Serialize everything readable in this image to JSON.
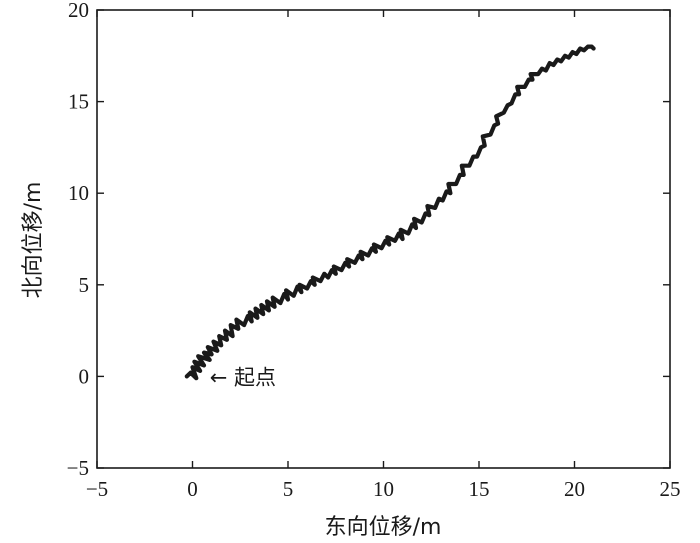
{
  "chart_data": {
    "type": "line",
    "title": "",
    "xlabel": "东向位移/m",
    "ylabel": "北向位移/m",
    "xlim": [
      -5,
      25
    ],
    "ylim": [
      -5,
      20
    ],
    "xticks": [
      -5,
      0,
      5,
      10,
      15,
      20,
      25
    ],
    "yticks": [
      -5,
      0,
      5,
      10,
      15,
      20
    ],
    "xtick_labels": [
      "−5",
      "0",
      "5",
      "10",
      "15",
      "20",
      "25"
    ],
    "ytick_labels": [
      "−5",
      "0",
      "5",
      "10",
      "15",
      "20"
    ],
    "grid": false,
    "annotations": [
      {
        "text": "← 起点",
        "x": 0.9,
        "y": 0.0
      }
    ],
    "series": [
      {
        "color": "#1a1a1a",
        "x": [
          -0.3,
          -0.1,
          0.2,
          0.0,
          0.4,
          0.1,
          0.6,
          0.3,
          0.9,
          0.6,
          1.0,
          0.8,
          1.3,
          1.1,
          1.5,
          1.4,
          1.8,
          1.7,
          2.1,
          2.0,
          2.4,
          2.3,
          2.7,
          2.9,
          3.1,
          3.0,
          3.4,
          3.3,
          3.7,
          3.6,
          4.0,
          3.9,
          4.3,
          4.2,
          4.6,
          4.8,
          5.0,
          4.9,
          5.3,
          5.5,
          5.7,
          5.6,
          6.0,
          6.2,
          6.4,
          6.3,
          6.7,
          6.9,
          7.1,
          7.3,
          7.5,
          7.4,
          7.8,
          8.0,
          8.2,
          8.1,
          8.5,
          8.7,
          8.9,
          8.8,
          9.2,
          9.4,
          9.6,
          9.5,
          9.9,
          10.1,
          10.3,
          10.2,
          10.6,
          10.8,
          11.0,
          10.9,
          11.3,
          11.5,
          11.7,
          11.6,
          12.0,
          12.2,
          12.4,
          12.3,
          12.7,
          12.9,
          13.1,
          13.3,
          13.5,
          13.4,
          13.8,
          14.0,
          14.2,
          14.1,
          14.5,
          14.7,
          14.9,
          15.1,
          15.3,
          15.2,
          15.6,
          15.8,
          16.0,
          15.9,
          16.3,
          16.5,
          16.7,
          16.9,
          17.1,
          17.0,
          17.4,
          17.6,
          17.8,
          17.7,
          18.1,
          18.3,
          18.5,
          18.7,
          18.9,
          19.1,
          19.3,
          19.5,
          19.7,
          19.9,
          20.1,
          20.3,
          20.5,
          20.7,
          20.9,
          21.0
        ],
        "y": [
          0.0,
          0.2,
          -0.1,
          0.5,
          0.3,
          0.8,
          0.6,
          1.1,
          0.9,
          1.3,
          1.2,
          1.6,
          1.4,
          1.9,
          1.7,
          2.2,
          2.0,
          2.5,
          2.2,
          2.8,
          2.6,
          3.1,
          2.8,
          3.3,
          3.0,
          3.5,
          3.2,
          3.7,
          3.4,
          3.9,
          3.6,
          4.1,
          3.8,
          4.3,
          4.0,
          4.5,
          4.2,
          4.7,
          4.4,
          4.9,
          4.6,
          5.0,
          4.8,
          5.2,
          5.0,
          5.4,
          5.2,
          5.6,
          5.4,
          5.8,
          5.6,
          6.0,
          5.8,
          6.2,
          6.0,
          6.4,
          6.2,
          6.6,
          6.4,
          6.8,
          6.6,
          7.0,
          6.8,
          7.2,
          7.0,
          7.4,
          7.2,
          7.6,
          7.4,
          7.8,
          7.5,
          8.0,
          7.8,
          8.3,
          8.1,
          8.6,
          8.4,
          8.9,
          8.8,
          9.3,
          9.2,
          9.7,
          9.6,
          10.1,
          10.0,
          10.5,
          10.5,
          11.0,
          11.0,
          11.5,
          11.5,
          12.0,
          12.0,
          12.5,
          12.6,
          13.1,
          13.2,
          13.7,
          13.8,
          14.2,
          14.4,
          14.8,
          14.9,
          15.4,
          15.4,
          15.8,
          15.8,
          16.2,
          16.2,
          16.5,
          16.5,
          16.8,
          16.7,
          17.1,
          17.0,
          17.3,
          17.2,
          17.5,
          17.4,
          17.7,
          17.6,
          17.9,
          17.8,
          18.0,
          18.0,
          17.9
        ]
      }
    ]
  }
}
